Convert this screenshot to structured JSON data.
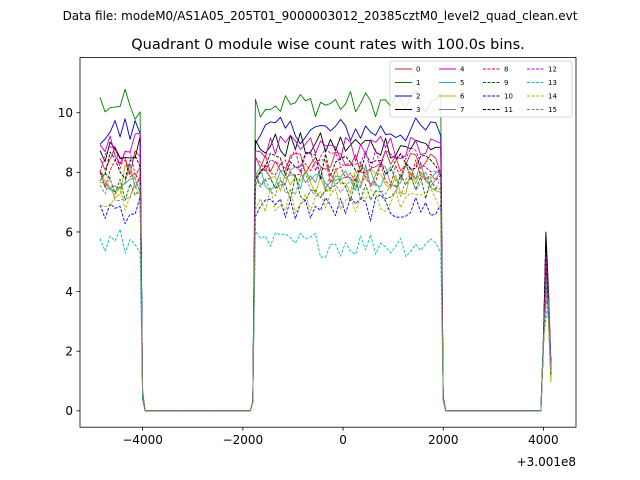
{
  "chart_data": {
    "type": "line",
    "suptitle": "Data file: modeM0/AS1A05_205T01_9000003012_20385cztM0_level2_quad_clean.evt",
    "title": "Quadrant 0 module wise count rates with 100.0s bins.",
    "xlabel": "",
    "ylabel": "",
    "offset_label": "+3.001e8",
    "xlim": [
      -5250,
      4650
    ],
    "ylim": [
      -0.55,
      11.85
    ],
    "xticks": [
      -4000,
      -2000,
      0,
      2000,
      4000
    ],
    "xtick_labels": [
      "−4000",
      "−2000",
      "0",
      "2000",
      "4000"
    ],
    "yticks": [
      0,
      2,
      4,
      6,
      8,
      10
    ],
    "ytick_labels": [
      "0",
      "2",
      "4",
      "6",
      "8",
      "10"
    ],
    "legend_position": "top-right",
    "segments": [
      {
        "start": -4850,
        "end": -4050
      },
      {
        "start": -1750,
        "end": 1950
      },
      {
        "start": 4050,
        "end": 4150
      }
    ],
    "gap_ranges": [
      [
        -3950,
        -1850
      ],
      [
        2050,
        3950
      ]
    ],
    "series": [
      {
        "name": "0",
        "color": "#d62728",
        "dash": "solid",
        "level": 8.3
      },
      {
        "name": "1",
        "color": "#008000",
        "dash": "solid",
        "level": 10.3
      },
      {
        "name": "2",
        "color": "#0000cc",
        "dash": "solid",
        "level": 9.4
      },
      {
        "name": "3",
        "color": "#000000",
        "dash": "solid",
        "level": 8.9
      },
      {
        "name": "4",
        "color": "#bf00bf",
        "dash": "solid",
        "level": 8.8
      },
      {
        "name": "5",
        "color": "#1abc9c",
        "dash": "solid",
        "level": 7.8
      },
      {
        "name": "6",
        "color": "#b5b500",
        "dash": "solid",
        "level": 7.7
      },
      {
        "name": "7",
        "color": "#808080",
        "dash": "solid",
        "level": 7.9
      },
      {
        "name": "8",
        "color": "#ff0000",
        "dash": "dashed",
        "level": 8.0
      },
      {
        "name": "9",
        "color": "#006400",
        "dash": "dashed",
        "level": 7.5
      },
      {
        "name": "10",
        "color": "#0000ff",
        "dash": "dashed",
        "level": 6.8
      },
      {
        "name": "11",
        "color": "#000000",
        "dash": "dashed",
        "level": 8.2
      },
      {
        "name": "12",
        "color": "#cc00cc",
        "dash": "dashed",
        "level": 8.4
      },
      {
        "name": "13",
        "color": "#00bfbf",
        "dash": "dashed",
        "level": 5.6
      },
      {
        "name": "14",
        "color": "#b0b000",
        "dash": "dashed",
        "level": 7.1
      },
      {
        "name": "15",
        "color": "#808080",
        "dash": "dashed",
        "level": 7.6
      }
    ],
    "spike_peaks": [
      4.6,
      5.7,
      5.0,
      6.0,
      5.3,
      4.4,
      3.9,
      4.5,
      4.9,
      4.1,
      3.7,
      5.8,
      5.2,
      3.1,
      3.8,
      4.0
    ]
  }
}
